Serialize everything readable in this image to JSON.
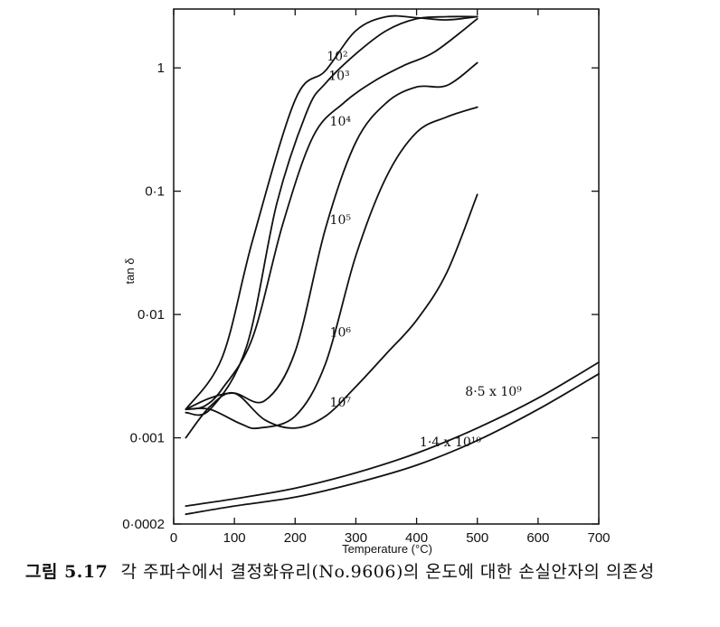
{
  "chart_data": {
    "type": "line",
    "xlabel": "Temperature (°C)",
    "ylabel": "tan δ",
    "xlim": [
      0,
      700
    ],
    "ylim": [
      0.0002,
      3
    ],
    "y_scale": "log",
    "x_ticks": [
      "0",
      "100",
      "200",
      "300",
      "400",
      "500",
      "600",
      "700"
    ],
    "y_ticks": [
      {
        "value": 1,
        "label": "1"
      },
      {
        "value": 0.1,
        "label": "0·1"
      },
      {
        "value": 0.01,
        "label": "0·01"
      },
      {
        "value": 0.001,
        "label": "0·001"
      },
      {
        "value": 0.0002,
        "label": "0·0002"
      }
    ],
    "series": [
      {
        "label": "10²",
        "label_at": [
          252,
          1.15
        ],
        "x": [
          20,
          80,
          130,
          200,
          250,
          300,
          350,
          400,
          450,
          500
        ],
        "y": [
          0.0017,
          0.0045,
          0.04,
          0.55,
          0.95,
          2.0,
          2.6,
          2.55,
          2.45,
          2.6
        ]
      },
      {
        "label": "10³",
        "label_at": [
          255,
          0.8
        ],
        "x": [
          20,
          60,
          120,
          170,
          220,
          250,
          300,
          350,
          400,
          450,
          500
        ],
        "y": [
          0.0016,
          0.0017,
          0.0055,
          0.08,
          0.45,
          0.75,
          1.3,
          2.0,
          2.5,
          2.6,
          2.6
        ]
      },
      {
        "label": "10⁴",
        "label_at": [
          257,
          0.34
        ],
        "x": [
          20,
          50,
          80,
          130,
          180,
          230,
          280,
          330,
          380,
          430,
          500
        ],
        "y": [
          0.0017,
          0.0018,
          0.0025,
          0.0065,
          0.055,
          0.28,
          0.52,
          0.78,
          1.05,
          1.35,
          2.5
        ]
      },
      {
        "label": "10⁵",
        "label_at": [
          257,
          0.054
        ],
        "x": [
          20,
          60,
          100,
          150,
          200,
          250,
          300,
          350,
          400,
          450,
          500
        ],
        "y": [
          0.0017,
          0.0021,
          0.0023,
          0.002,
          0.005,
          0.05,
          0.25,
          0.52,
          0.7,
          0.72,
          1.1
        ]
      },
      {
        "label": "10⁶",
        "label_at": [
          257,
          0.0066
        ],
        "x": [
          20,
          60,
          110,
          140,
          200,
          250,
          300,
          350,
          400,
          450,
          500
        ],
        "y": [
          0.0017,
          0.0017,
          0.0013,
          0.0012,
          0.0015,
          0.004,
          0.03,
          0.13,
          0.3,
          0.4,
          0.48
        ]
      },
      {
        "label": "10⁷",
        "label_at": [
          257,
          0.0018
        ],
        "x": [
          20,
          60,
          100,
          150,
          200,
          250,
          300,
          350,
          400,
          450,
          500
        ],
        "y": [
          0.001,
          0.0018,
          0.0023,
          0.0014,
          0.0012,
          0.0015,
          0.0026,
          0.0048,
          0.009,
          0.022,
          0.094
        ]
      },
      {
        "label": "8·5 x 10⁹",
        "label_at": [
          480,
          0.0022
        ],
        "x": [
          20,
          100,
          200,
          300,
          400,
          500,
          600,
          700
        ],
        "y": [
          0.00028,
          0.00032,
          0.00039,
          0.00052,
          0.00075,
          0.0012,
          0.0021,
          0.0041
        ]
      },
      {
        "label": "1·4 x 10¹⁰",
        "label_at": [
          405,
          0.00085
        ],
        "x": [
          20,
          100,
          200,
          300,
          400,
          500,
          600,
          700
        ],
        "y": [
          0.00024,
          0.00028,
          0.00033,
          0.00043,
          0.0006,
          0.00095,
          0.0017,
          0.0033
        ]
      }
    ]
  },
  "caption": {
    "label": "그림 5.17",
    "text": "각 주파수에서 결정화유리(No.9606)의 온도에 대한 손실안자의 의존성"
  }
}
